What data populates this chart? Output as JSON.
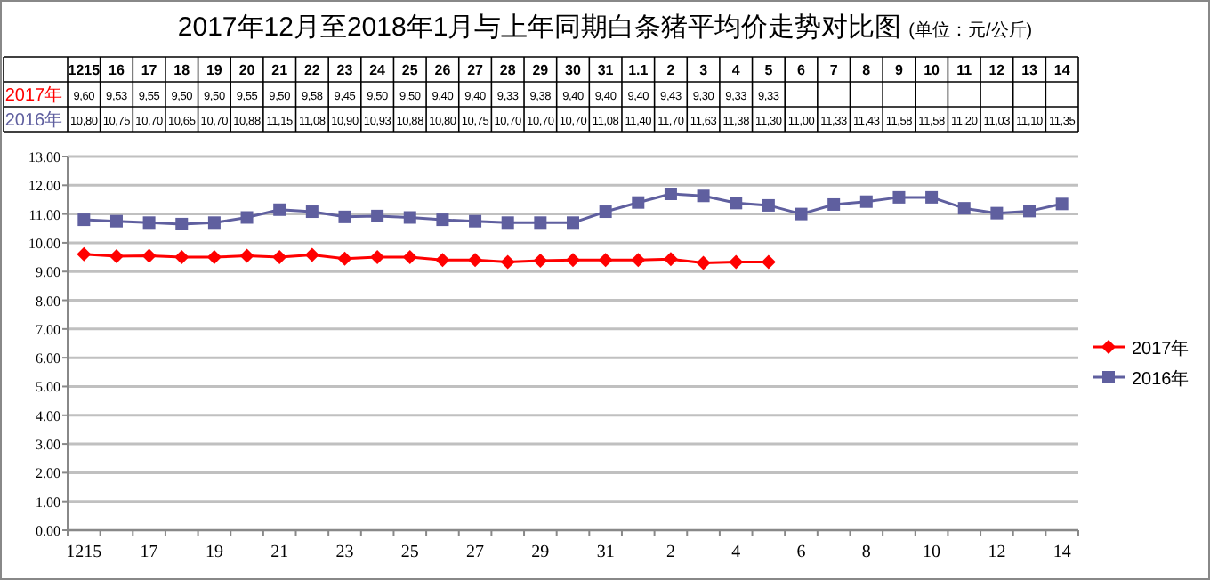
{
  "chart_data": {
    "type": "line",
    "title": "2017年12月至2018年1月与上年同期白条猪平均价走势对比图",
    "subtitle": "(单位：元/公斤)",
    "categories": [
      "1215",
      "16",
      "17",
      "18",
      "19",
      "20",
      "21",
      "22",
      "23",
      "24",
      "25",
      "26",
      "27",
      "28",
      "29",
      "30",
      "31",
      "1.1",
      "2",
      "3",
      "4",
      "5",
      "6",
      "7",
      "8",
      "9",
      "10",
      "11",
      "12",
      "13",
      "14"
    ],
    "series": [
      {
        "name": "2017年",
        "color": "#ff0000",
        "marker": "diamond",
        "values": [
          9.6,
          9.53,
          9.55,
          9.5,
          9.5,
          9.55,
          9.5,
          9.58,
          9.45,
          9.5,
          9.5,
          9.4,
          9.4,
          9.33,
          9.38,
          9.4,
          9.4,
          9.4,
          9.43,
          9.3,
          9.33,
          9.33,
          null,
          null,
          null,
          null,
          null,
          null,
          null,
          null,
          null
        ],
        "value_labels": [
          "9,60",
          "9,53",
          "9,55",
          "9,50",
          "9,50",
          "9,55",
          "9,50",
          "9,58",
          "9,45",
          "9,50",
          "9,50",
          "9,40",
          "9,40",
          "9,33",
          "9,38",
          "9,40",
          "9,40",
          "9,40",
          "9,43",
          "9,30",
          "9,33",
          "9,33",
          null,
          null,
          null,
          null,
          null,
          null,
          null,
          null,
          null
        ]
      },
      {
        "name": "2016年",
        "color": "#5f5f9f",
        "marker": "square",
        "values": [
          10.8,
          10.75,
          10.7,
          10.65,
          10.7,
          10.88,
          11.15,
          11.08,
          10.9,
          10.93,
          10.88,
          10.8,
          10.75,
          10.7,
          10.7,
          10.7,
          11.08,
          11.4,
          11.7,
          11.63,
          11.38,
          11.3,
          11.0,
          11.33,
          11.43,
          11.58,
          11.58,
          11.2,
          11.03,
          11.1,
          11.35
        ],
        "value_labels": [
          "10,80",
          "10,75",
          "10,70",
          "10,65",
          "10,70",
          "10,88",
          "11,15",
          "11,08",
          "10,90",
          "10,93",
          "10,88",
          "10,80",
          "10,75",
          "10,70",
          "10,70",
          "10,70",
          "11,08",
          "11,40",
          "11,70",
          "11,63",
          "11,38",
          "11,30",
          "11,00",
          "11,33",
          "11,43",
          "11,58",
          "11,58",
          "11,20",
          "11,03",
          "11,10",
          "11,35"
        ]
      }
    ],
    "ylim": [
      0,
      13
    ],
    "yticks": [
      {
        "value": 0,
        "label": "0.00"
      },
      {
        "value": 1,
        "label": "1.00"
      },
      {
        "value": 2,
        "label": "2.00"
      },
      {
        "value": 3,
        "label": "3.00"
      },
      {
        "value": 4,
        "label": "4.00"
      },
      {
        "value": 5,
        "label": "5.00"
      },
      {
        "value": 6,
        "label": "6.00"
      },
      {
        "value": 7,
        "label": "7.00"
      },
      {
        "value": 8,
        "label": "8.00"
      },
      {
        "value": 9,
        "label": "9.00"
      },
      {
        "value": 10,
        "label": "10.00"
      },
      {
        "value": 11,
        "label": "11.00"
      },
      {
        "value": 12,
        "label": "12.00"
      },
      {
        "value": 13,
        "label": "13.00"
      }
    ],
    "grid": "y",
    "legend": "right",
    "line_style": "solid"
  }
}
